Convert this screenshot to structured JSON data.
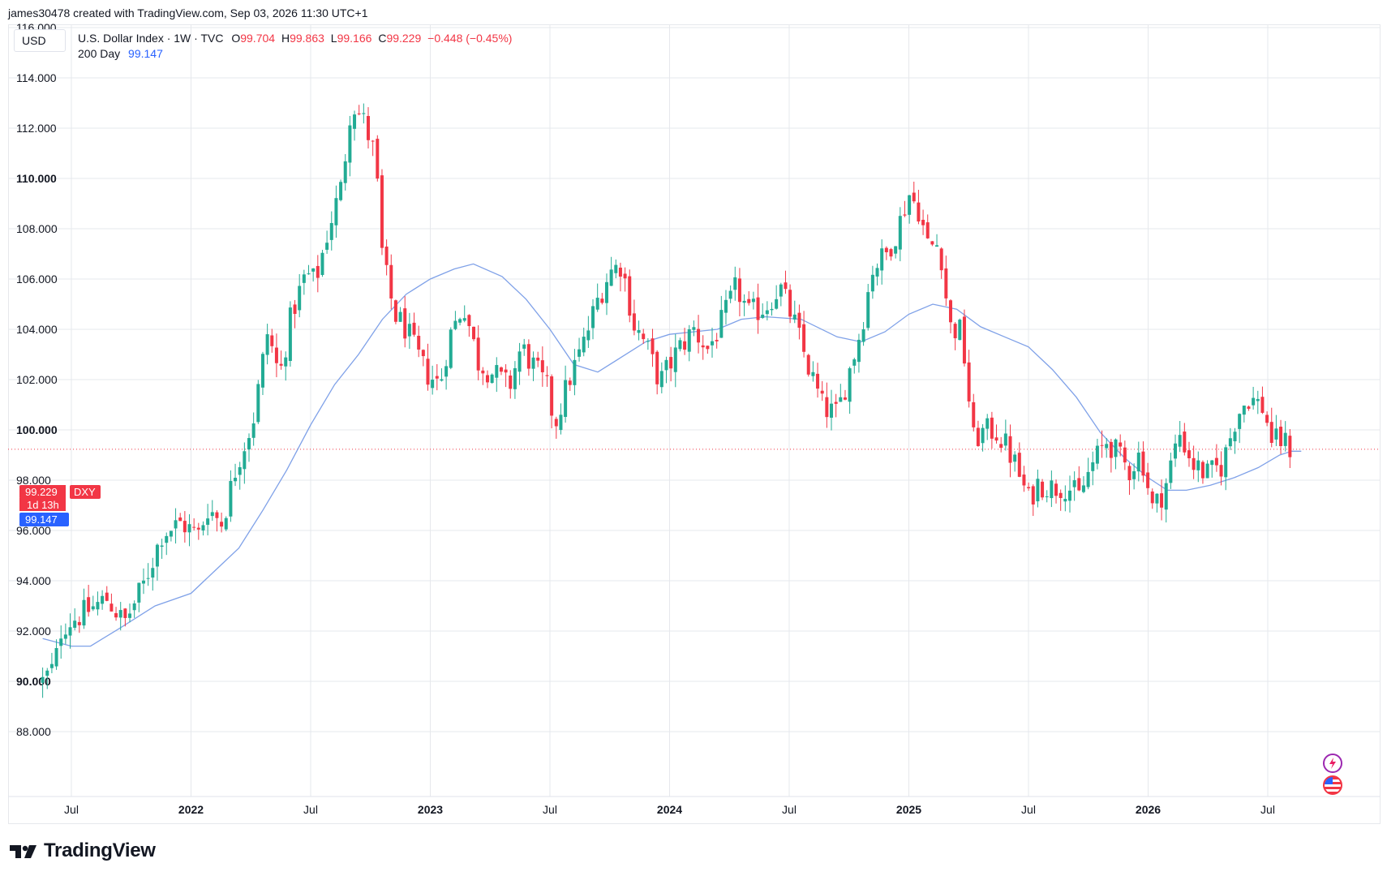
{
  "header_text": "james30478 created with TradingView.com, Sep 03, 2026 11:30 UTC+1",
  "currency_button": "USD",
  "legend": {
    "symbol": "U.S. Dollar Index · 1W · TVC",
    "o_label": "O",
    "o_value": "99.704",
    "h_label": "H",
    "h_value": "99.863",
    "l_label": "L",
    "l_value": "99.166",
    "c_label": "C",
    "c_value": "99.229",
    "change": "−0.448 (−0.45%)",
    "ma_label": "200 Day",
    "ma_value": "99.147"
  },
  "price_tags": {
    "last_price": "99.229",
    "ticker": "DXY",
    "countdown": "1d 13h",
    "ma_value": "99.147"
  },
  "brand": "TradingView",
  "icons": [
    "bolt-icon",
    "us-flag-icon",
    "tradingview-logo-icon"
  ],
  "colors": {
    "up": "#22ab94",
    "down": "#f23645",
    "ma": "#7fa1e8",
    "grid": "#e6e8ec",
    "text": "#131722"
  },
  "chart_data": {
    "type": "candlestick",
    "interval": "1W",
    "series_name": "U.S. Dollar Index",
    "overlay_name": "200 Day",
    "ylim": [
      87.5,
      117
    ],
    "y_ticks": [
      "116.000",
      "114.000",
      "112.000",
      "110.000",
      "108.000",
      "106.000",
      "104.000",
      "102.000",
      "100.000",
      "98.000",
      "96.000",
      "94.000",
      "92.000",
      "90.000",
      "88.000"
    ],
    "y_tick_values": [
      116,
      114,
      112,
      110,
      108,
      106,
      104,
      102,
      100,
      98,
      96,
      94,
      92,
      90,
      88
    ],
    "bold_ticks": [
      "110.000",
      "100.000",
      "90.000"
    ],
    "x_ticks": [
      {
        "label": "Jul",
        "t": 2021.5
      },
      {
        "label": "2022",
        "t": 2022.0
      },
      {
        "label": "Jul",
        "t": 2022.5
      },
      {
        "label": "2023",
        "t": 2023.0
      },
      {
        "label": "Jul",
        "t": 2023.5
      },
      {
        "label": "2024",
        "t": 2024.0
      },
      {
        "label": "Jul",
        "t": 2024.5
      },
      {
        "label": "2025",
        "t": 2025.0
      },
      {
        "label": "Jul",
        "t": 2025.5
      },
      {
        "label": "2026",
        "t": 2026.0
      },
      {
        "label": "Jul",
        "t": 2026.5
      }
    ],
    "xlim": [
      2021.38,
      2026.76
    ],
    "close_path": [
      [
        2021.38,
        90.0
      ],
      [
        2021.43,
        90.6
      ],
      [
        2021.46,
        92.2
      ],
      [
        2021.55,
        92.7
      ],
      [
        2021.65,
        93.3
      ],
      [
        2021.72,
        92.3
      ],
      [
        2021.8,
        93.8
      ],
      [
        2021.88,
        95.9
      ],
      [
        2021.96,
        96.3
      ],
      [
        2022.03,
        95.8
      ],
      [
        2022.07,
        96.9
      ],
      [
        2022.13,
        96.3
      ],
      [
        2022.19,
        98.6
      ],
      [
        2022.26,
        100.4
      ],
      [
        2022.32,
        103.9
      ],
      [
        2022.37,
        102.1
      ],
      [
        2022.42,
        104.6
      ],
      [
        2022.48,
        106.2
      ],
      [
        2022.52,
        105.9
      ],
      [
        2022.58,
        108.2
      ],
      [
        2022.63,
        109.7
      ],
      [
        2022.67,
        113.1
      ],
      [
        2022.72,
        112.3
      ],
      [
        2022.77,
        110.9
      ],
      [
        2022.8,
        106.8
      ],
      [
        2022.85,
        104.6
      ],
      [
        2022.9,
        104.0
      ],
      [
        2022.93,
        103.3
      ],
      [
        2022.98,
        102.3
      ],
      [
        2023.04,
        101.8
      ],
      [
        2023.08,
        103.7
      ],
      [
        2023.14,
        105.0
      ],
      [
        2023.2,
        102.7
      ],
      [
        2023.27,
        102.2
      ],
      [
        2023.33,
        101.7
      ],
      [
        2023.38,
        103.3
      ],
      [
        2023.44,
        102.4
      ],
      [
        2023.49,
        101.6
      ],
      [
        2023.52,
        100.2
      ],
      [
        2023.58,
        102.0
      ],
      [
        2023.64,
        103.4
      ],
      [
        2023.7,
        105.2
      ],
      [
        2023.75,
        106.3
      ],
      [
        2023.8,
        106.6
      ],
      [
        2023.85,
        104.2
      ],
      [
        2023.9,
        103.4
      ],
      [
        2023.96,
        101.9
      ],
      [
        2024.03,
        103.1
      ],
      [
        2024.1,
        104.0
      ],
      [
        2024.16,
        103.2
      ],
      [
        2024.22,
        104.3
      ],
      [
        2024.28,
        105.7
      ],
      [
        2024.33,
        104.6
      ],
      [
        2024.4,
        104.9
      ],
      [
        2024.46,
        105.7
      ],
      [
        2024.52,
        104.3
      ],
      [
        2024.58,
        102.5
      ],
      [
        2024.64,
        100.9
      ],
      [
        2024.7,
        100.6
      ],
      [
        2024.75,
        102.3
      ],
      [
        2024.8,
        104.0
      ],
      [
        2024.85,
        106.5
      ],
      [
        2024.9,
        106.9
      ],
      [
        2024.95,
        107.9
      ],
      [
        2025.0,
        109.4
      ],
      [
        2025.04,
        108.8
      ],
      [
        2025.08,
        107.3
      ],
      [
        2025.13,
        107.4
      ],
      [
        2025.17,
        104.1
      ],
      [
        2025.22,
        103.9
      ],
      [
        2025.27,
        99.6
      ],
      [
        2025.31,
        99.9
      ],
      [
        2025.36,
        100.0
      ],
      [
        2025.41,
        99.3
      ],
      [
        2025.45,
        98.5
      ],
      [
        2025.5,
        97.2
      ],
      [
        2025.54,
        97.9
      ],
      [
        2025.6,
        97.7
      ],
      [
        2025.66,
        97.8
      ],
      [
        2025.71,
        97.3
      ],
      [
        2025.76,
        98.5
      ],
      [
        2025.83,
        99.6
      ],
      [
        2025.88,
        98.9
      ],
      [
        2025.92,
        98.4
      ],
      [
        2025.97,
        99.1
      ],
      [
        2026.02,
        96.8
      ],
      [
        2026.07,
        97.7
      ],
      [
        2026.13,
        99.9
      ],
      [
        2026.19,
        98.6
      ],
      [
        2026.25,
        98.2
      ],
      [
        2026.31,
        98.6
      ],
      [
        2026.37,
        100.6
      ],
      [
        2026.42,
        101.3
      ],
      [
        2026.48,
        100.9
      ],
      [
        2026.52,
        99.5
      ],
      [
        2026.56,
        99.6
      ],
      [
        2026.6,
        99.2
      ]
    ],
    "ma_path": [
      [
        2021.38,
        91.7
      ],
      [
        2021.5,
        91.4
      ],
      [
        2021.58,
        91.4
      ],
      [
        2021.7,
        92.1
      ],
      [
        2021.85,
        93.0
      ],
      [
        2022.0,
        93.5
      ],
      [
        2022.1,
        94.4
      ],
      [
        2022.2,
        95.3
      ],
      [
        2022.3,
        96.8
      ],
      [
        2022.4,
        98.4
      ],
      [
        2022.5,
        100.2
      ],
      [
        2022.6,
        101.8
      ],
      [
        2022.7,
        103.0
      ],
      [
        2022.8,
        104.4
      ],
      [
        2022.9,
        105.4
      ],
      [
        2023.0,
        106.0
      ],
      [
        2023.1,
        106.4
      ],
      [
        2023.18,
        106.6
      ],
      [
        2023.3,
        106.1
      ],
      [
        2023.4,
        105.2
      ],
      [
        2023.5,
        104.0
      ],
      [
        2023.6,
        102.6
      ],
      [
        2023.7,
        102.3
      ],
      [
        2023.8,
        102.9
      ],
      [
        2023.9,
        103.5
      ],
      [
        2024.0,
        103.8
      ],
      [
        2024.1,
        103.9
      ],
      [
        2024.2,
        104.0
      ],
      [
        2024.3,
        104.4
      ],
      [
        2024.4,
        104.5
      ],
      [
        2024.55,
        104.4
      ],
      [
        2024.7,
        103.7
      ],
      [
        2024.8,
        103.5
      ],
      [
        2024.9,
        103.9
      ],
      [
        2025.0,
        104.6
      ],
      [
        2025.1,
        105.0
      ],
      [
        2025.2,
        104.8
      ],
      [
        2025.3,
        104.1
      ],
      [
        2025.4,
        103.7
      ],
      [
        2025.5,
        103.3
      ],
      [
        2025.6,
        102.4
      ],
      [
        2025.7,
        101.3
      ],
      [
        2025.8,
        99.9
      ],
      [
        2025.9,
        98.9
      ],
      [
        2026.0,
        98.1
      ],
      [
        2026.08,
        97.6
      ],
      [
        2026.16,
        97.6
      ],
      [
        2026.26,
        97.8
      ],
      [
        2026.36,
        98.1
      ],
      [
        2026.46,
        98.5
      ],
      [
        2026.55,
        99.0
      ],
      [
        2026.6,
        99.15
      ],
      [
        2026.64,
        99.15
      ]
    ]
  }
}
